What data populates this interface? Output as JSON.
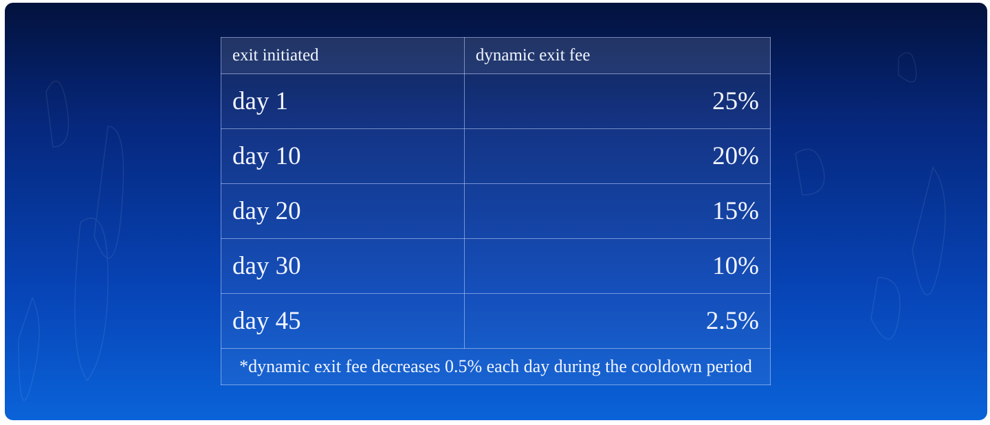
{
  "table": {
    "headers": [
      "exit initiated",
      "dynamic exit fee"
    ],
    "rows": [
      {
        "day": "day 1",
        "fee": "25%"
      },
      {
        "day": "day 10",
        "fee": "20%"
      },
      {
        "day": "day 20",
        "fee": "15%"
      },
      {
        "day": "day 30",
        "fee": "10%"
      },
      {
        "day": "day 45",
        "fee": "2.5%"
      }
    ],
    "footnote": "*dynamic exit fee decreases 0.5% each day during the cooldown period"
  },
  "colors": {
    "background_top": "#03123d",
    "background_bottom": "#0a63d8",
    "text": "#f2f5ff"
  }
}
